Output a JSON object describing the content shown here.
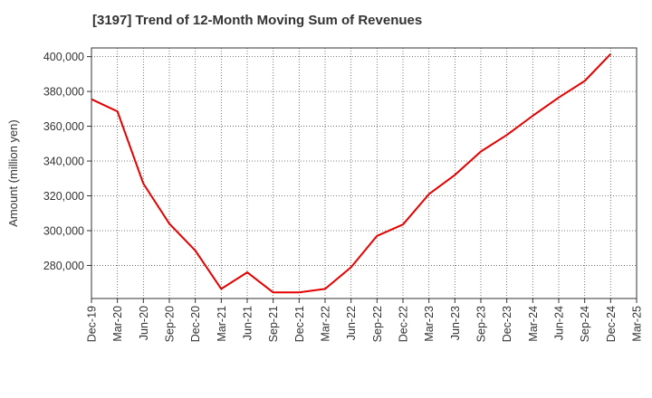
{
  "chart_data": {
    "type": "line",
    "title": "[3197]  Trend of 12-Month Moving Sum of Revenues",
    "xlabel": "",
    "ylabel": "Amount (million yen)",
    "categories": [
      "Dec-19",
      "Mar-20",
      "Jun-20",
      "Sep-20",
      "Dec-20",
      "Mar-21",
      "Jun-21",
      "Sep-21",
      "Dec-21",
      "Mar-22",
      "Jun-22",
      "Sep-22",
      "Dec-22",
      "Mar-23",
      "Jun-23",
      "Sep-23",
      "Dec-23",
      "Mar-24",
      "Jun-24",
      "Sep-24",
      "Dec-24",
      "Mar-25"
    ],
    "series": [
      {
        "values": [
          375500,
          368500,
          327000,
          304000,
          288500,
          266500,
          276000,
          264500,
          264500,
          266500,
          279000,
          297000,
          303500,
          321000,
          332000,
          345500,
          355000,
          366000,
          376500,
          386000,
          401500,
          null
        ]
      }
    ],
    "ylim": [
      261000,
      405000
    ],
    "yticks": [
      280000,
      300000,
      320000,
      340000,
      360000,
      380000,
      400000
    ],
    "ytick_labels": [
      "280,000",
      "300,000",
      "320,000",
      "340,000",
      "360,000",
      "380,000",
      "400,000"
    ],
    "grid": true,
    "colors": {
      "line": "#e60000",
      "grid": "#555555",
      "axis": "#333333"
    }
  }
}
